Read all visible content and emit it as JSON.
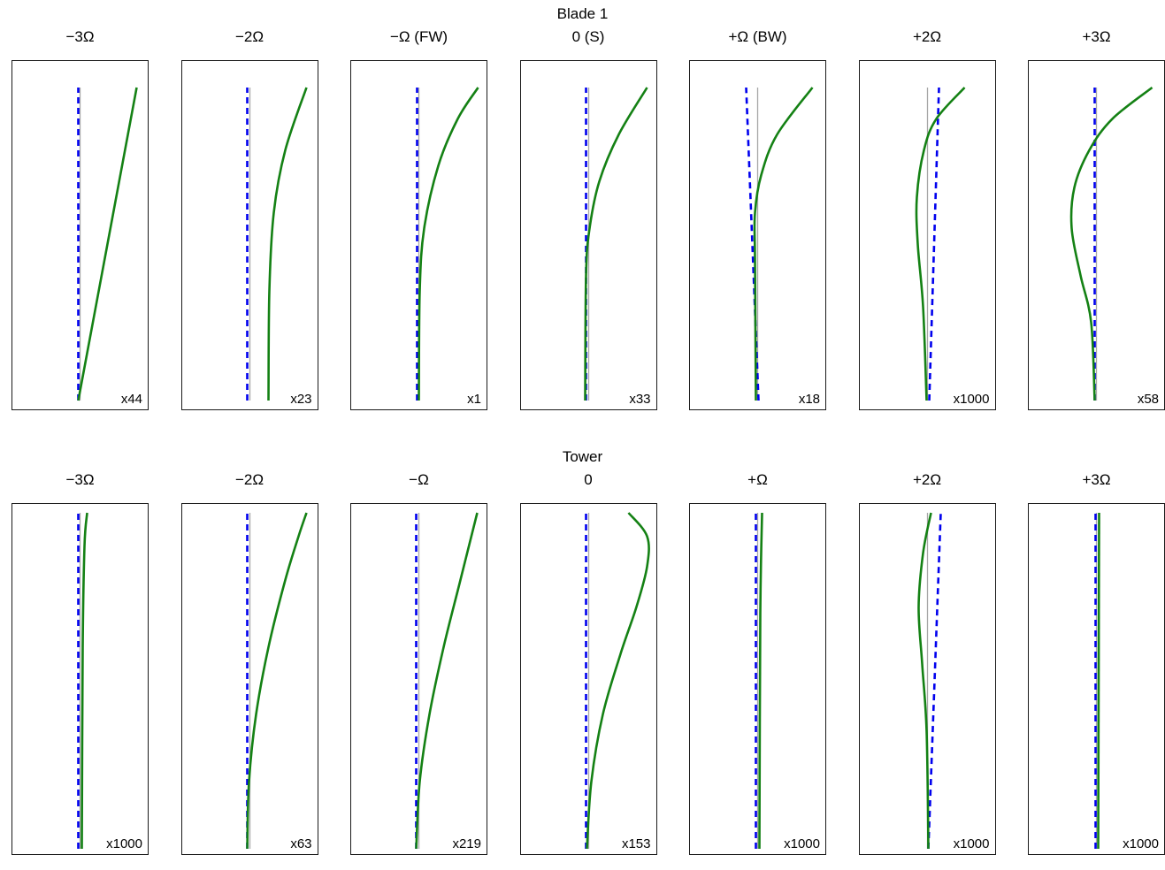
{
  "colors": {
    "solid_green": "#148114",
    "dashed_blue": "#0000ee",
    "axis_gray": "#a6a6a6",
    "box_border": "#1a1a1a",
    "background": "#ffffff"
  },
  "curve_format": "points are [t, dx]: t = 0 at bottom to 1 at top of box, dx = horizontal offset in px from the gray reference axis (positive = right)",
  "chart_data": [
    {
      "type": "line",
      "title": "Blade 1",
      "subplots": [
        {
          "title": "−3Ω",
          "scale_label": "x44",
          "solid_curve": [
            [
              0,
              -2
            ],
            [
              0.5,
              31
            ],
            [
              1,
              64
            ]
          ],
          "dashed_curve": [
            [
              0,
              -2
            ],
            [
              1,
              -2
            ]
          ]
        },
        {
          "title": "−2Ω",
          "scale_label": "x23",
          "solid_curve": [
            [
              0,
              21
            ],
            [
              0.35,
              22
            ],
            [
              0.6,
              27
            ],
            [
              0.8,
              40
            ],
            [
              1,
              64
            ]
          ],
          "dashed_curve": [
            [
              0,
              -3
            ],
            [
              1,
              -3
            ]
          ]
        },
        {
          "title": "−Ω (FW)",
          "scale_label": "x1",
          "solid_curve": [
            [
              0,
              0
            ],
            [
              0.35,
              1
            ],
            [
              0.55,
              6
            ],
            [
              0.75,
              22
            ],
            [
              0.9,
              44
            ],
            [
              1,
              67
            ]
          ],
          "dashed_curve": [
            [
              0,
              -2
            ],
            [
              1,
              -2
            ]
          ]
        },
        {
          "title": "0 (S)",
          "scale_label": "x33",
          "solid_curve": [
            [
              0,
              -4
            ],
            [
              0.4,
              -3
            ],
            [
              0.55,
              1
            ],
            [
              0.7,
              12
            ],
            [
              0.85,
              34
            ],
            [
              1,
              66
            ]
          ],
          "dashed_curve": [
            [
              0,
              -3
            ],
            [
              1,
              -3
            ]
          ]
        },
        {
          "title": "+Ω (BW)",
          "scale_label": "x18",
          "solid_curve": [
            [
              0,
              -2
            ],
            [
              0.45,
              -3
            ],
            [
              0.6,
              -3
            ],
            [
              0.72,
              4
            ],
            [
              0.85,
              22
            ],
            [
              1,
              62
            ]
          ],
          "dashed_curve": [
            [
              0,
              1
            ],
            [
              1,
              -13
            ]
          ]
        },
        {
          "title": "+2Ω",
          "scale_label": "x1000",
          "solid_curve": [
            [
              0,
              -1
            ],
            [
              0.3,
              -5
            ],
            [
              0.5,
              -11
            ],
            [
              0.65,
              -12
            ],
            [
              0.8,
              -4
            ],
            [
              0.9,
              10
            ],
            [
              1,
              42
            ]
          ],
          "dashed_curve": [
            [
              0,
              2
            ],
            [
              1,
              13
            ]
          ]
        },
        {
          "title": "+3Ω",
          "scale_label": "x58",
          "solid_curve": [
            [
              0,
              -2
            ],
            [
              0.25,
              -6
            ],
            [
              0.4,
              -18
            ],
            [
              0.55,
              -28
            ],
            [
              0.68,
              -25
            ],
            [
              0.8,
              -8
            ],
            [
              0.9,
              18
            ],
            [
              1,
              63
            ]
          ],
          "dashed_curve": [
            [
              0,
              -2
            ],
            [
              1,
              -2
            ]
          ]
        }
      ]
    },
    {
      "type": "line",
      "title": "Tower",
      "subplots": [
        {
          "title": "−3Ω",
          "scale_label": "x1000",
          "solid_curve": [
            [
              0,
              2
            ],
            [
              0.6,
              3
            ],
            [
              0.9,
              5
            ],
            [
              1,
              8
            ]
          ],
          "dashed_curve": [
            [
              0,
              -2
            ],
            [
              1,
              -2
            ]
          ]
        },
        {
          "title": "−2Ω",
          "scale_label": "x63",
          "solid_curve": [
            [
              0,
              -3
            ],
            [
              0.2,
              -1
            ],
            [
              0.4,
              7
            ],
            [
              0.6,
              21
            ],
            [
              0.8,
              40
            ],
            [
              0.93,
              55
            ],
            [
              1,
              64
            ]
          ],
          "dashed_curve": [
            [
              0,
              -3
            ],
            [
              1,
              -3
            ]
          ]
        },
        {
          "title": "−Ω",
          "scale_label": "x219",
          "solid_curve": [
            [
              0,
              -3
            ],
            [
              0.2,
              1
            ],
            [
              0.4,
              12
            ],
            [
              0.6,
              28
            ],
            [
              0.8,
              47
            ],
            [
              1,
              66
            ]
          ],
          "dashed_curve": [
            [
              0,
              -3
            ],
            [
              1,
              -3
            ]
          ]
        },
        {
          "title": "0",
          "scale_label": "x153",
          "solid_curve": [
            [
              0,
              -2
            ],
            [
              0.2,
              3
            ],
            [
              0.4,
              16
            ],
            [
              0.58,
              36
            ],
            [
              0.72,
              54
            ],
            [
              0.84,
              66
            ],
            [
              0.93,
              66
            ],
            [
              1,
              45
            ]
          ],
          "dashed_curve": [
            [
              0,
              -3
            ],
            [
              1,
              -3
            ]
          ]
        },
        {
          "title": "+Ω",
          "scale_label": "x1000",
          "solid_curve": [
            [
              0,
              2
            ],
            [
              0.7,
              3
            ],
            [
              1,
              5
            ]
          ],
          "dashed_curve": [
            [
              0,
              -2
            ],
            [
              1,
              -2
            ]
          ]
        },
        {
          "title": "+2Ω",
          "scale_label": "x1000",
          "solid_curve": [
            [
              0,
              1
            ],
            [
              0.35,
              -1
            ],
            [
              0.55,
              -6
            ],
            [
              0.72,
              -10
            ],
            [
              0.88,
              -5
            ],
            [
              1,
              4
            ]
          ],
          "dashed_curve": [
            [
              0,
              1
            ],
            [
              1,
              15
            ]
          ]
        },
        {
          "title": "+3Ω",
          "scale_label": "x1000",
          "solid_curve": [
            [
              0,
              2
            ],
            [
              1,
              3
            ]
          ],
          "dashed_curve": [
            [
              0,
              -1
            ],
            [
              1,
              -1
            ]
          ]
        }
      ]
    }
  ]
}
